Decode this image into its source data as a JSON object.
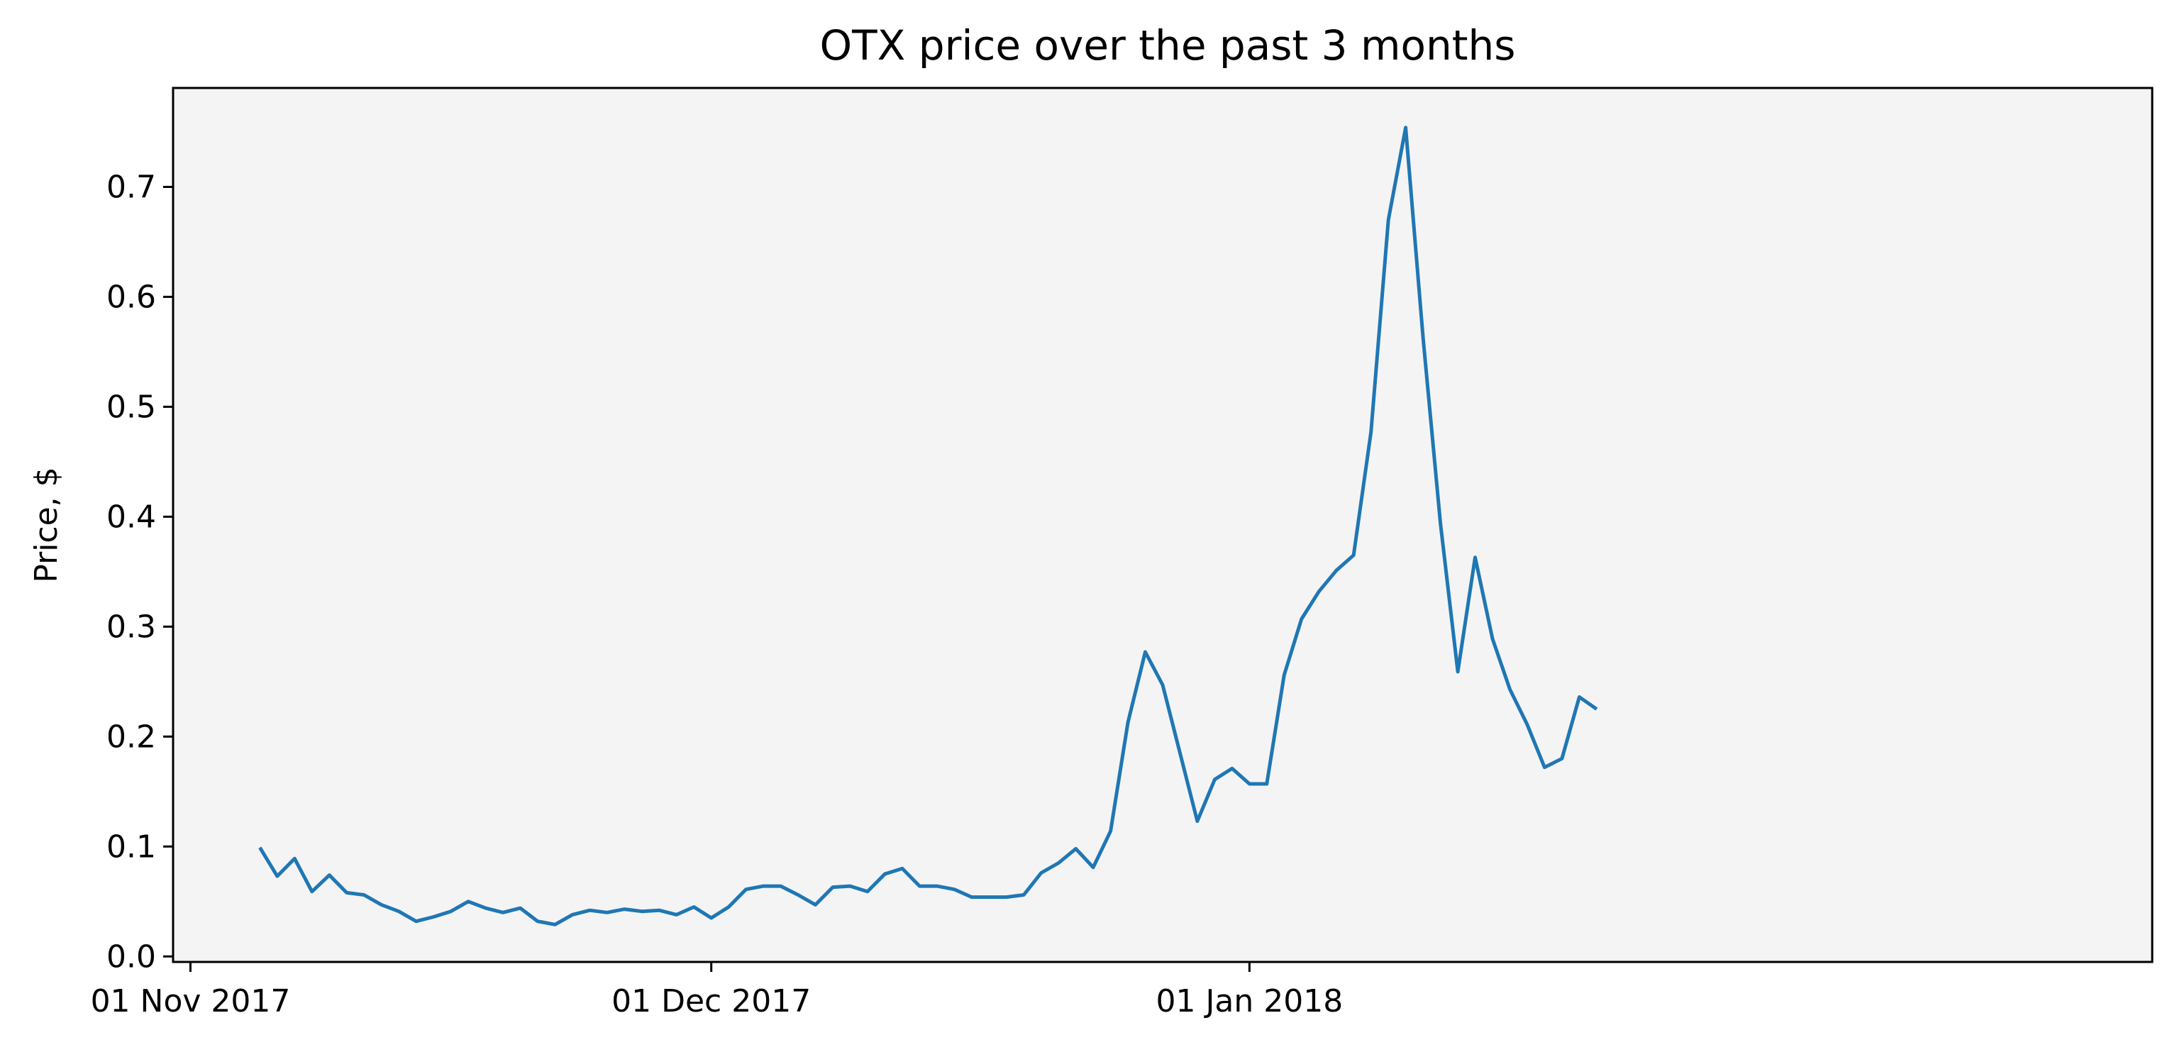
{
  "chart_data": {
    "type": "line",
    "title": "OTX price over the past 3 months",
    "xlabel": "",
    "ylabel": "Price, $",
    "x_start_date": "2017-11-05",
    "x_step_days": 1,
    "x_ticks": [
      {
        "date": "2017-11-01",
        "label": "01 Nov 2017"
      },
      {
        "date": "2017-12-01",
        "label": "01 Dec 2017"
      },
      {
        "date": "2018-01-01",
        "label": "01 Jan 2018"
      }
    ],
    "xlim": [
      "2017-10-31",
      "2018-02-22"
    ],
    "ylim": [
      -0.005,
      0.79
    ],
    "y_ticks": [
      0.0,
      0.1,
      0.2,
      0.3,
      0.4,
      0.5,
      0.6,
      0.7
    ],
    "y_tick_labels": [
      "0.0",
      "0.1",
      "0.2",
      "0.3",
      "0.4",
      "0.5",
      "0.6",
      "0.7"
    ],
    "grid": false,
    "background": "#f4f4f4",
    "series": [
      {
        "name": "OTX",
        "color": "#1f77b4",
        "values": [
          0.099,
          0.073,
          0.089,
          0.059,
          0.074,
          0.058,
          0.056,
          0.047,
          0.041,
          0.032,
          0.036,
          0.041,
          0.05,
          0.044,
          0.04,
          0.044,
          0.032,
          0.029,
          0.038,
          0.042,
          0.04,
          0.043,
          0.041,
          0.042,
          0.038,
          0.045,
          0.035,
          0.045,
          0.061,
          0.064,
          0.064,
          0.056,
          0.047,
          0.063,
          0.064,
          0.059,
          0.075,
          0.08,
          0.064,
          0.064,
          0.061,
          0.054,
          0.054,
          0.054,
          0.056,
          0.076,
          0.085,
          0.098,
          0.081,
          0.114,
          0.213,
          0.277,
          0.247,
          0.185,
          0.123,
          0.161,
          0.171,
          0.157,
          0.157,
          0.256,
          0.307,
          0.332,
          0.351,
          0.365,
          0.477,
          0.67,
          0.754,
          0.563,
          0.394,
          0.259,
          0.363,
          0.289,
          0.243,
          0.211,
          0.172,
          0.18,
          0.236,
          0.225
        ]
      }
    ]
  }
}
